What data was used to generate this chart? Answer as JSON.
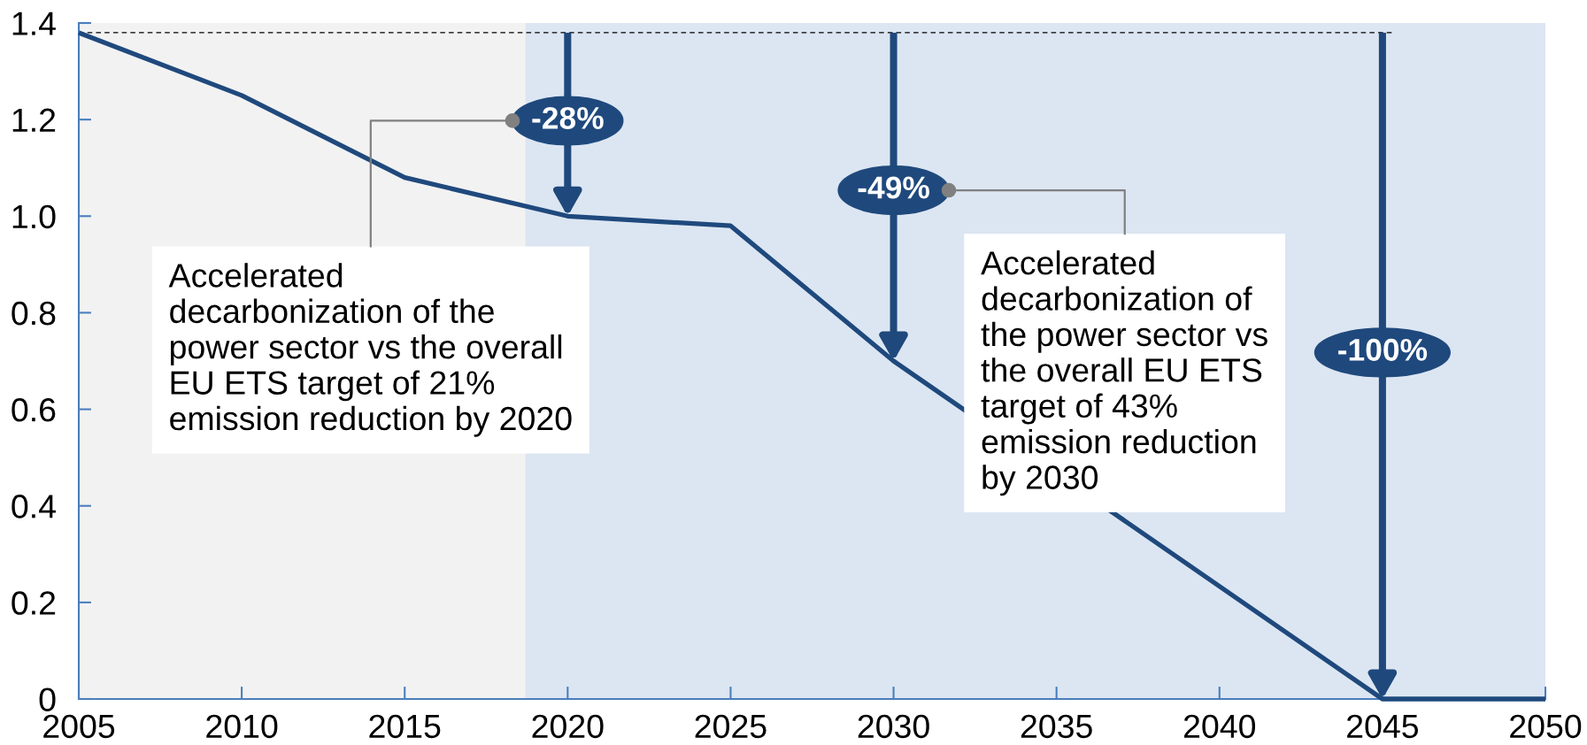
{
  "chart_data": {
    "type": "line",
    "series": [
      {
        "x": [
          2005,
          2010,
          2015,
          2020,
          2025,
          2030,
          2045,
          2050
        ],
        "values": [
          1.38,
          1.25,
          1.08,
          1.0,
          0.98,
          0.7,
          0,
          0
        ],
        "color": "#1f497d"
      }
    ],
    "xlim": [
      2005,
      2050
    ],
    "xticks": [
      2005,
      2010,
      2015,
      2020,
      2025,
      2030,
      2035,
      2040,
      2045,
      2050
    ],
    "ylim": [
      0,
      1.4
    ],
    "yticks": [
      0,
      0.2,
      0.4,
      0.6,
      0.8,
      {
        "value": 1,
        "label": "1.0"
      },
      1.2,
      1.4
    ],
    "bands": [
      {
        "axis": "x",
        "from": 2005,
        "to": 2018.7,
        "color": "#f2f2f2"
      },
      {
        "axis": "x",
        "from": 2018.7,
        "to": 2050,
        "color": "#dce6f2"
      }
    ],
    "ref_lines": [
      {
        "axis": "y",
        "value": 1.38,
        "color": "#000000",
        "line_style": "dashed"
      }
    ],
    "annotations": [
      {
        "text": "-28%",
        "x": 2020,
        "y": 1.0
      },
      {
        "text": "-49%",
        "x": 2030,
        "y": 0.7
      },
      {
        "text": "-100%",
        "x": 2045,
        "y": 0
      },
      "Accelerated\ndecarbonization of the\npower sector vs the overall\nEU ETS target of 21%\nemission reduction by 2020",
      "Accelerated\ndecarbonization of\nthe power sector vs\nthe overall EU ETS\ntarget of 43%\nemission reduction\nby 2030"
    ]
  }
}
